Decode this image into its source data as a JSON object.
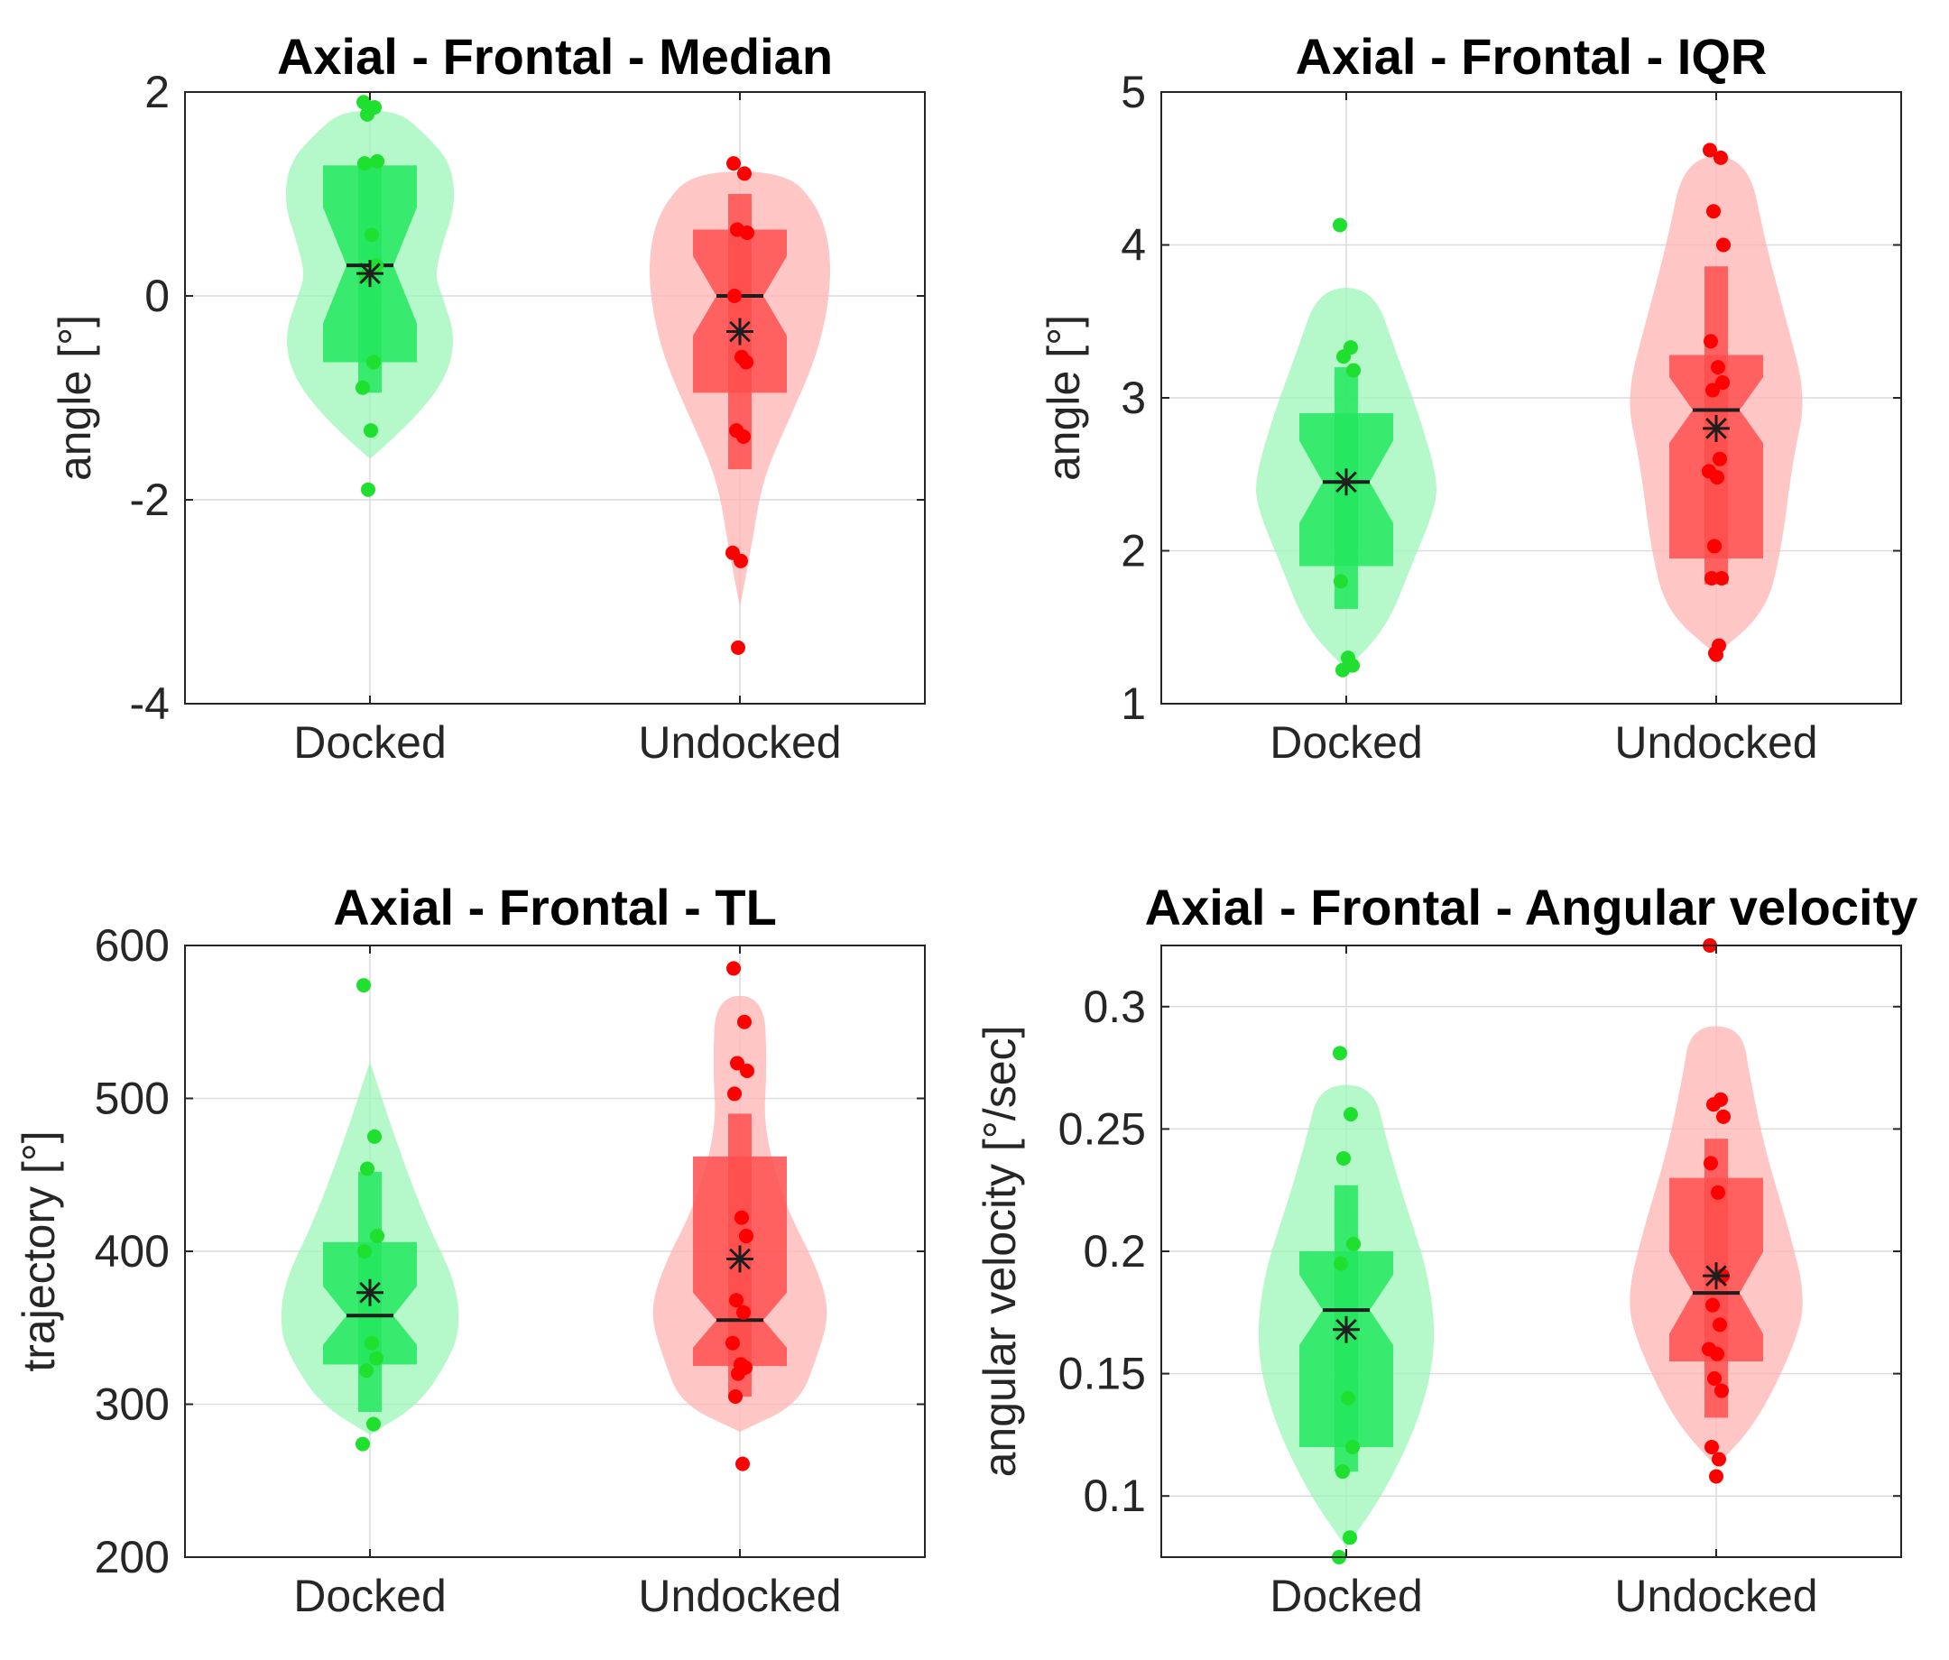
{
  "colors": {
    "docked_violin": "#9cf5b8",
    "docked_box": "#22e85e",
    "docked_dot": "#1fe02f",
    "undocked_violin": "#ffb3b3",
    "undocked_box": "#ff4d4d",
    "undocked_dot": "#ff0000",
    "center_marker": "#1e1e1e"
  },
  "chart_data": [
    {
      "type": "violin",
      "title": "Axial - Frontal - Median",
      "ylabel": "angle [°]",
      "categories": [
        "Docked",
        "Undocked"
      ],
      "ylim": [
        -4,
        2
      ],
      "yticks": [
        -4,
        -2,
        0,
        2
      ],
      "ytick_labels": [
        "-4",
        "-2",
        "0",
        "2"
      ],
      "groups": [
        {
          "name": "Docked",
          "median": 0.3,
          "mean": 0.22,
          "q1": -0.65,
          "q3": 1.28,
          "whisker_low": -0.95,
          "whisker_high": 1.3,
          "violin": [
            [
              -1.6,
              0.0
            ],
            [
              -1.2,
              0.5
            ],
            [
              -0.8,
              0.85
            ],
            [
              -0.4,
              0.95
            ],
            [
              0.0,
              0.8
            ],
            [
              0.2,
              0.72
            ],
            [
              0.5,
              0.8
            ],
            [
              0.9,
              0.95
            ],
            [
              1.3,
              0.9
            ],
            [
              1.6,
              0.6
            ],
            [
              1.82,
              0.3
            ]
          ],
          "points": [
            1.9,
            1.85,
            1.78,
            1.32,
            1.3,
            0.6,
            0.3,
            0.2,
            -0.65,
            -0.9,
            -1.32,
            -1.9
          ]
        },
        {
          "name": "Undocked",
          "median": 0.0,
          "mean": -0.35,
          "q1": -0.95,
          "q3": 0.65,
          "whisker_low": -1.7,
          "whisker_high": 1.0,
          "violin": [
            [
              -3.05,
              0.0
            ],
            [
              -2.5,
              0.12
            ],
            [
              -1.8,
              0.25
            ],
            [
              -1.2,
              0.55
            ],
            [
              -0.6,
              0.85
            ],
            [
              0.0,
              1.0
            ],
            [
              0.5,
              1.0
            ],
            [
              0.9,
              0.85
            ],
            [
              1.22,
              0.5
            ]
          ],
          "points": [
            1.3,
            1.2,
            0.65,
            0.62,
            0.0,
            -0.6,
            -0.65,
            -1.32,
            -1.38,
            -2.52,
            -2.6,
            -3.45
          ]
        }
      ]
    },
    {
      "type": "violin",
      "title": "Axial - Frontal - IQR",
      "ylabel": "angle [°]",
      "categories": [
        "Docked",
        "Undocked"
      ],
      "ylim": [
        1,
        5
      ],
      "yticks": [
        1,
        2,
        3,
        4,
        5
      ],
      "ytick_labels": [
        "1",
        "2",
        "3",
        "4",
        "5"
      ],
      "groups": [
        {
          "name": "Docked",
          "median": 2.45,
          "mean": 2.45,
          "q1": 1.9,
          "q3": 2.9,
          "whisker_low": 1.62,
          "whisker_high": 3.2,
          "violin": [
            [
              1.22,
              0.0
            ],
            [
              1.5,
              0.45
            ],
            [
              1.9,
              0.72
            ],
            [
              2.3,
              1.0
            ],
            [
              2.5,
              1.0
            ],
            [
              2.9,
              0.8
            ],
            [
              3.3,
              0.55
            ],
            [
              3.72,
              0.3
            ]
          ],
          "points": [
            4.13,
            3.33,
            3.27,
            3.18,
            1.8,
            1.3,
            1.25,
            1.22
          ]
        },
        {
          "name": "Undocked",
          "median": 2.92,
          "mean": 2.8,
          "q1": 1.95,
          "q3": 3.28,
          "whisker_low": 1.78,
          "whisker_high": 3.86,
          "violin": [
            [
              1.32,
              0.0
            ],
            [
              1.6,
              0.55
            ],
            [
              2.0,
              0.72
            ],
            [
              2.6,
              0.85
            ],
            [
              3.0,
              1.0
            ],
            [
              3.5,
              0.78
            ],
            [
              4.0,
              0.55
            ],
            [
              4.58,
              0.35
            ]
          ],
          "points": [
            4.62,
            4.57,
            4.22,
            4.0,
            3.37,
            3.2,
            3.1,
            3.05,
            2.6,
            2.52,
            2.48,
            2.03,
            1.82,
            1.82,
            1.38,
            1.32,
            1.33
          ]
        }
      ]
    },
    {
      "type": "violin",
      "title": "Axial - Frontal - TL",
      "ylabel": "trajectory [°]",
      "categories": [
        "Docked",
        "Undocked"
      ],
      "ylim": [
        200,
        600
      ],
      "yticks": [
        200,
        300,
        400,
        500,
        600
      ],
      "ytick_labels": [
        "200",
        "300",
        "400",
        "500",
        "600"
      ],
      "groups": [
        {
          "name": "Docked",
          "median": 358,
          "mean": 373,
          "q1": 326,
          "q3": 406,
          "whisker_low": 295,
          "whisker_high": 452,
          "violin": [
            [
              280,
              0.0
            ],
            [
              300,
              0.55
            ],
            [
              330,
              0.88
            ],
            [
              350,
              1.0
            ],
            [
              380,
              0.95
            ],
            [
              420,
              0.62
            ],
            [
              470,
              0.3
            ],
            [
              524,
              0.0
            ]
          ],
          "points": [
            574,
            475,
            454,
            410,
            400,
            340,
            330,
            322,
            287,
            274
          ]
        },
        {
          "name": "Undocked",
          "median": 355,
          "mean": 395,
          "q1": 325,
          "q3": 462,
          "whisker_low": 305,
          "whisker_high": 490,
          "violin": [
            [
              282,
              0.0
            ],
            [
              300,
              0.65
            ],
            [
              330,
              0.85
            ],
            [
              360,
              1.0
            ],
            [
              390,
              0.85
            ],
            [
              430,
              0.5
            ],
            [
              480,
              0.26
            ],
            [
              520,
              0.3
            ],
            [
              567,
              0.27
            ]
          ],
          "points": [
            585,
            550,
            523,
            518,
            503,
            422,
            410,
            368,
            360,
            340,
            326,
            320,
            324,
            305,
            261
          ]
        }
      ]
    },
    {
      "type": "violin",
      "title": "Axial - Frontal - Angular velocity",
      "ylabel": "angular velocity [°/sec]",
      "categories": [
        "Docked",
        "Undocked"
      ],
      "ylim": [
        0.075,
        0.325
      ],
      "yticks": [
        0.1,
        0.15,
        0.2,
        0.25,
        0.3
      ],
      "ytick_labels": [
        "0.1",
        "0.15",
        "0.2",
        "0.25",
        "0.3"
      ],
      "groups": [
        {
          "name": "Docked",
          "median": 0.176,
          "mean": 0.168,
          "q1": 0.12,
          "q3": 0.2,
          "whisker_low": 0.11,
          "whisker_high": 0.227,
          "violin": [
            [
              0.079,
              0.0
            ],
            [
              0.1,
              0.4
            ],
            [
              0.13,
              0.8
            ],
            [
              0.16,
              1.0
            ],
            [
              0.19,
              0.92
            ],
            [
              0.22,
              0.65
            ],
            [
              0.245,
              0.45
            ],
            [
              0.268,
              0.3
            ]
          ],
          "points": [
            0.281,
            0.256,
            0.238,
            0.203,
            0.195,
            0.14,
            0.12,
            0.11,
            0.083,
            0.075
          ]
        },
        {
          "name": "Undocked",
          "median": 0.183,
          "mean": 0.19,
          "q1": 0.155,
          "q3": 0.23,
          "whisker_low": 0.132,
          "whisker_high": 0.246,
          "violin": [
            [
              0.112,
              0.0
            ],
            [
              0.13,
              0.45
            ],
            [
              0.16,
              0.85
            ],
            [
              0.18,
              1.0
            ],
            [
              0.21,
              0.8
            ],
            [
              0.24,
              0.55
            ],
            [
              0.27,
              0.38
            ],
            [
              0.292,
              0.28
            ]
          ],
          "points": [
            0.325,
            0.262,
            0.26,
            0.255,
            0.236,
            0.224,
            0.19,
            0.178,
            0.17,
            0.16,
            0.158,
            0.148,
            0.143,
            0.12,
            0.115,
            0.108
          ]
        }
      ]
    }
  ]
}
